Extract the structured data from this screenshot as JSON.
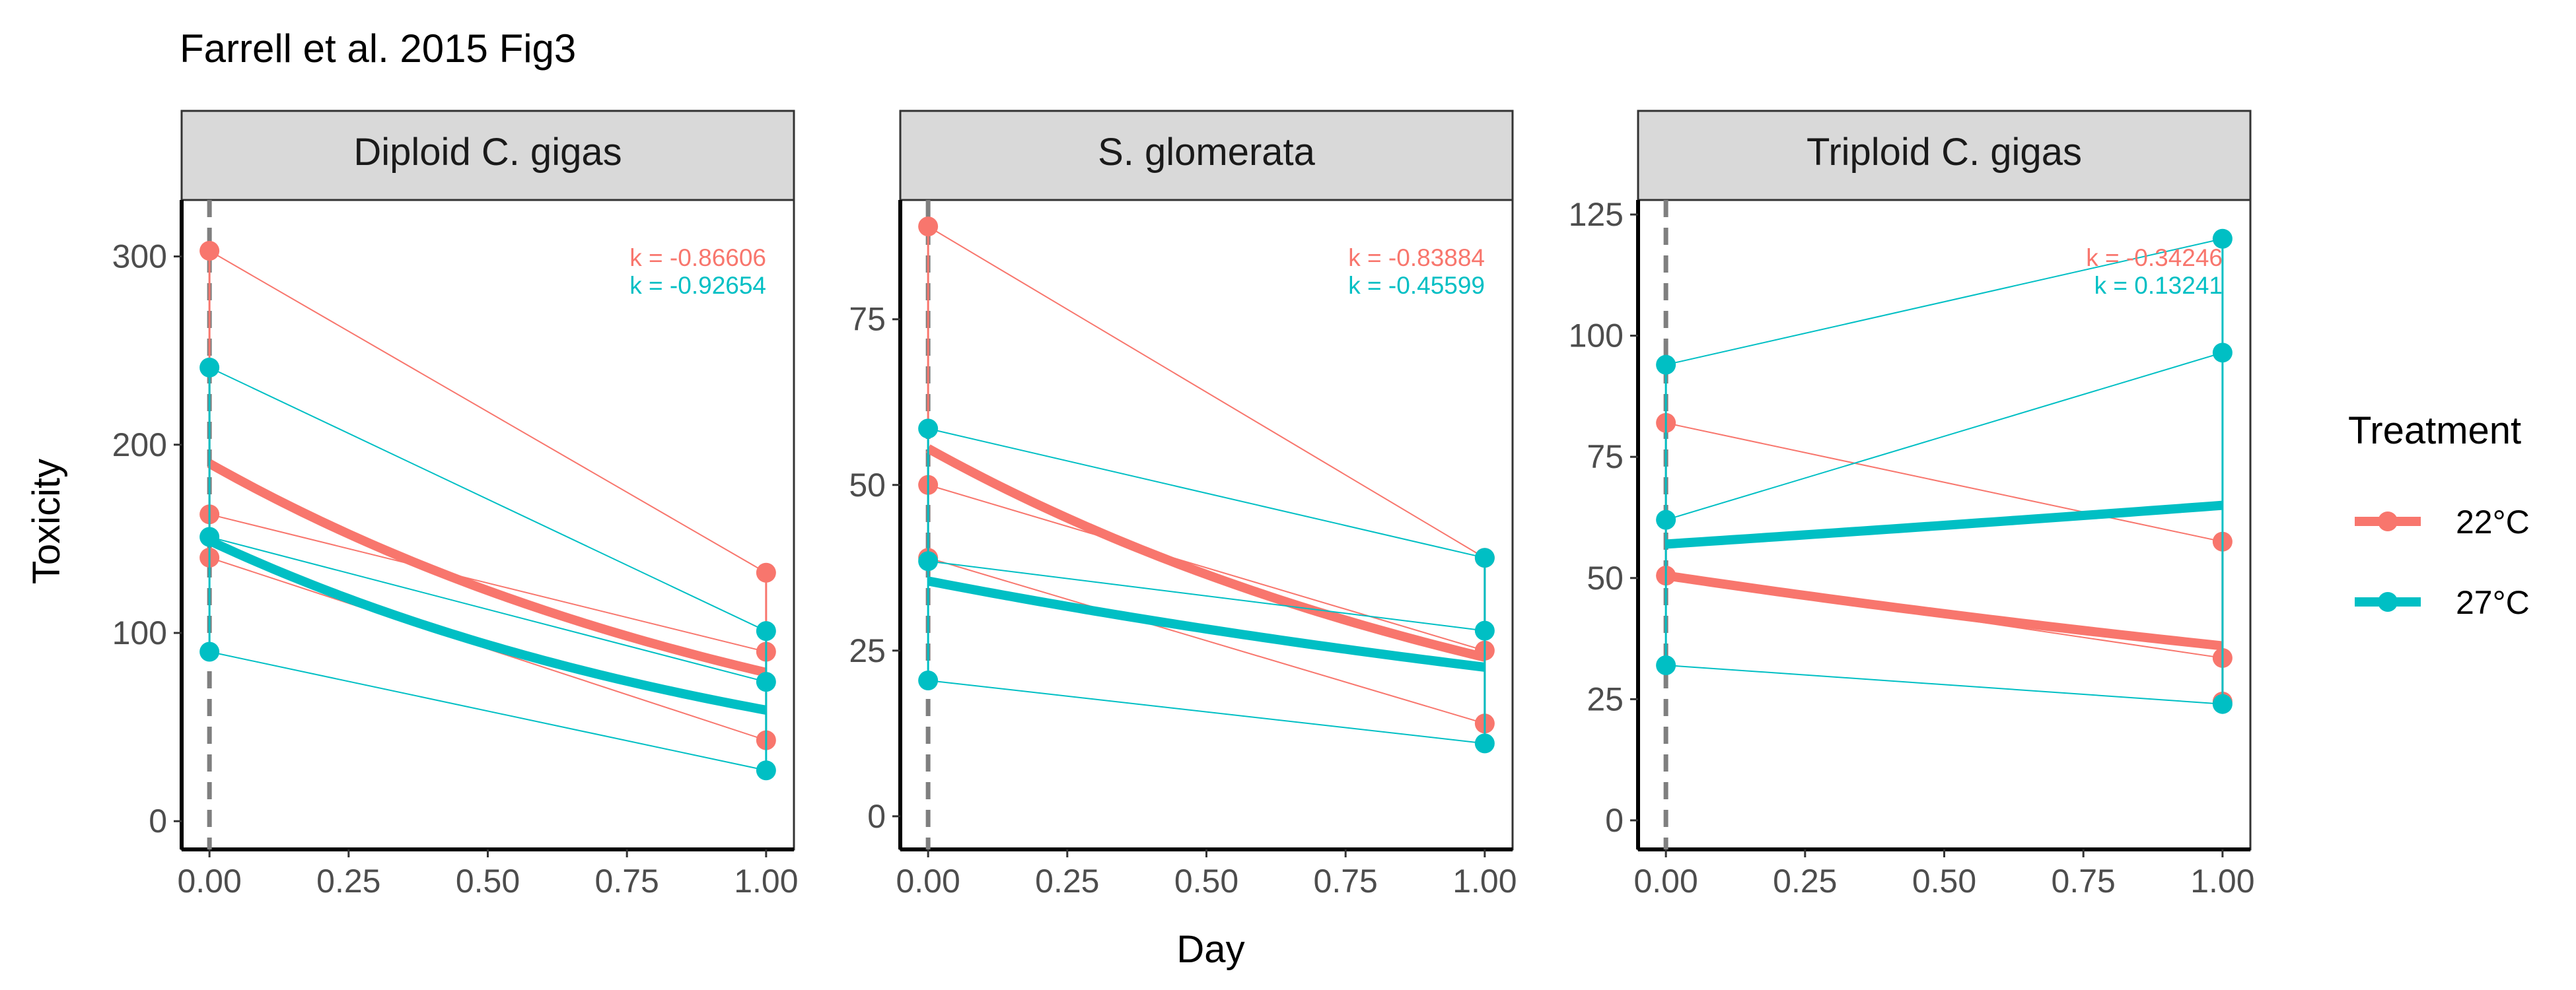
{
  "title": "Farrell et al. 2015 Fig3",
  "colors": {
    "c22": "#F8766D",
    "c27": "#00BFC4",
    "strip": "#D9D9D9",
    "vline": "#7F7F7F"
  },
  "chart_data": {
    "type": "scatter",
    "title": "Farrell et al. 2015 Fig3",
    "xlabel": "Day",
    "ylabel": "Toxicity",
    "legend": {
      "title": "Treatment",
      "position": "right",
      "entries": [
        {
          "label": "22°C",
          "key": "c22"
        },
        {
          "label": "27°C",
          "key": "c27"
        }
      ]
    },
    "x_ticks": [
      "0.00",
      "0.25",
      "0.50",
      "0.75",
      "1.00"
    ],
    "xlim": [
      -0.05,
      1.05
    ],
    "reference_line_x": 0,
    "panels": [
      {
        "strip": "Diploid C. gigas",
        "ylim": [
          -15,
          330
        ],
        "y_ticks": [
          0,
          100,
          200,
          300
        ],
        "annotations": [
          {
            "text": "k = -0.86606",
            "key": "c22"
          },
          {
            "text": "k = -0.92654",
            "key": "c27"
          }
        ],
        "series": [
          {
            "name": "22°C",
            "key": "c22",
            "day0": [
              303,
              163,
              140
            ],
            "day1": [
              132,
              90,
              43
            ],
            "fit": [
              190,
              79
            ]
          },
          {
            "name": "27°C",
            "key": "c27",
            "day0": [
              241,
              151,
              90
            ],
            "day1": [
              101,
              74,
              27
            ],
            "fit": [
              149,
              59
            ]
          }
        ]
      },
      {
        "strip": "S. glomerata",
        "ylim": [
          -5,
          93
        ],
        "y_ticks": [
          0,
          25,
          50,
          75
        ],
        "annotations": [
          {
            "text": "k = -0.83884",
            "key": "c22"
          },
          {
            "text": "k = -0.45599",
            "key": "c27"
          }
        ],
        "series": [
          {
            "name": "22°C",
            "key": "c22",
            "day0": [
              89,
              50,
              39
            ],
            "day1": [
              39,
              25,
              14
            ],
            "fit": [
              55.5,
              24
            ]
          },
          {
            "name": "27°C",
            "key": "c27",
            "day0": [
              58.5,
              38.5,
              20.5
            ],
            "day1": [
              39,
              28,
              11
            ],
            "fit": [
              35.5,
              22.5
            ]
          }
        ]
      },
      {
        "strip": "Triploid C. gigas",
        "ylim": [
          -6,
          128
        ],
        "y_ticks": [
          0,
          25,
          50,
          75,
          100,
          125
        ],
        "annotations": [
          {
            "text": "k = -0.34246",
            "key": "c22"
          },
          {
            "text": "k = 0.13241",
            "key": "c27"
          }
        ],
        "series": [
          {
            "name": "22°C",
            "key": "c22",
            "day0": [
              82,
              50.5
            ],
            "day1": [
              57.5,
              33.5,
              24.5
            ],
            "fit": [
              50.5,
              36
            ]
          },
          {
            "name": "27°C",
            "key": "c27",
            "day0": [
              94,
              62,
              32
            ],
            "day1": [
              120,
              96.5,
              24
            ],
            "fit": [
              57,
              65
            ]
          }
        ]
      }
    ]
  }
}
